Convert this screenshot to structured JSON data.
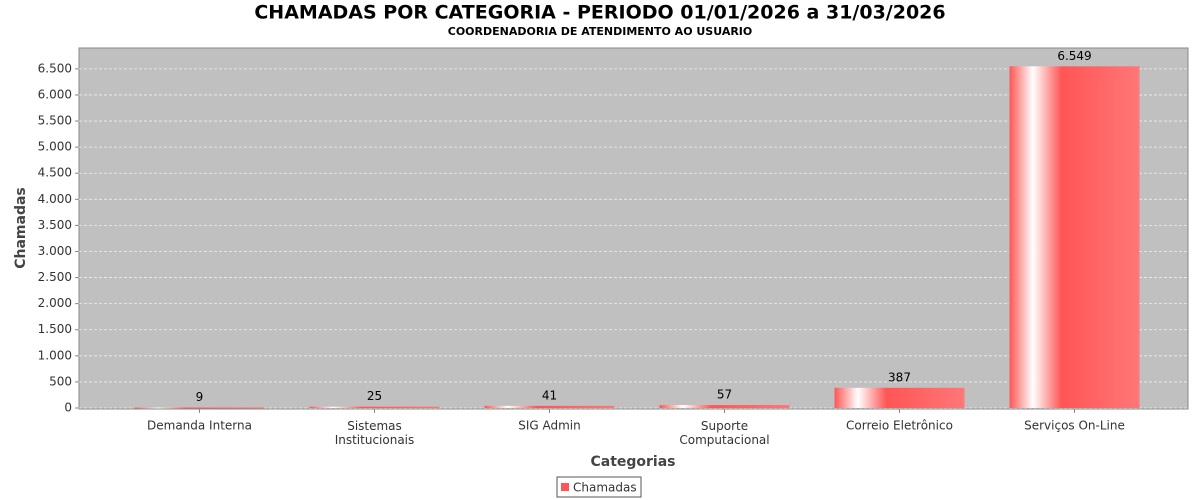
{
  "chart_data": {
    "type": "bar",
    "title": "CHAMADAS POR CATEGORIA - PERIODO 01/01/2026 a 31/03/2026",
    "subtitle": "COORDENADORIA DE ATENDIMENTO AO USUARIO",
    "x_label": "Categorias",
    "y_label": "Chamadas",
    "categories": [
      "Demanda Interna",
      "Sistemas\nInstitucionais",
      "SIG Admin",
      "Suporte\nComputacional",
      "Correio Eletrônico",
      "Serviços On-Line"
    ],
    "series": [
      {
        "name": "Chamadas",
        "color": "#ff5555",
        "values": [
          9,
          25,
          41,
          57,
          387,
          6549
        ],
        "value_labels": [
          "9",
          "25",
          "41",
          "57",
          "387",
          "6.549"
        ]
      }
    ],
    "ylim": [
      0,
      6900
    ],
    "yticks": [
      0,
      500,
      {
        "value": 1000,
        "label": "1.000"
      },
      {
        "value": 1500,
        "label": "1.500"
      },
      {
        "value": 2000,
        "label": "2.000"
      },
      {
        "value": 2500,
        "label": "2.500"
      },
      {
        "value": 3000,
        "label": "3.000"
      },
      {
        "value": 3500,
        "label": "3.500"
      },
      {
        "value": 4000,
        "label": "4.000"
      },
      {
        "value": 4500,
        "label": "4.500"
      },
      {
        "value": 5000,
        "label": "5.000"
      },
      {
        "value": 5500,
        "label": "5.500"
      },
      {
        "value": 6000,
        "label": "6.000"
      },
      {
        "value": 6500,
        "label": "6.500"
      }
    ],
    "grid": true
  }
}
